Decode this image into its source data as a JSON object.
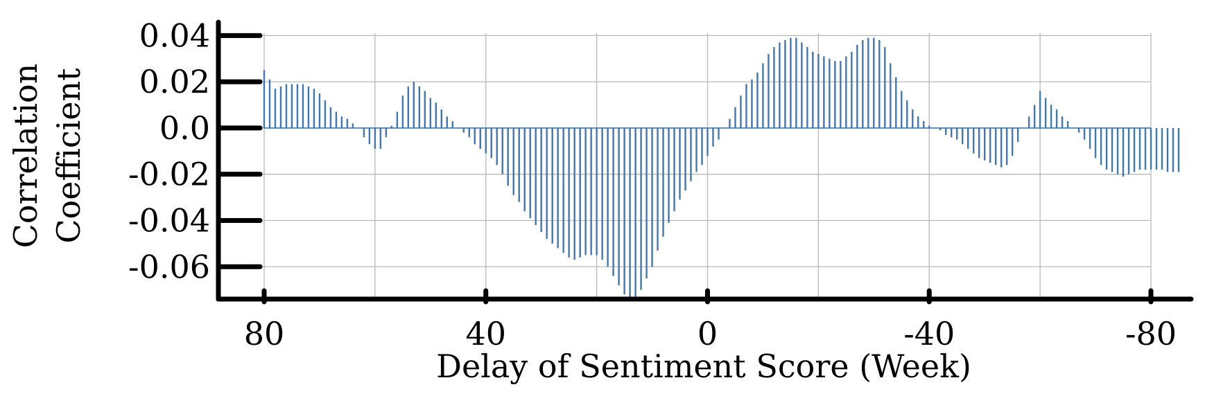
{
  "chart_data": {
    "type": "bar",
    "title": "",
    "xlabel": "Delay of Sentiment Score (Week)",
    "ylabel_lines": [
      "Correlation",
      "Coefficient"
    ],
    "x_start": 80,
    "x_end": -80,
    "x_step": -1,
    "xlim": [
      80,
      -80
    ],
    "ylim": [
      -0.074,
      0.041
    ],
    "x_ticks": [
      80,
      40,
      0,
      -40,
      -80
    ],
    "x_tick_labels": [
      "80",
      "40",
      "0",
      "-40",
      "-80"
    ],
    "x_grid": [
      80,
      60,
      40,
      20,
      0,
      -20,
      -40,
      -60,
      -80
    ],
    "y_ticks": [
      0.04,
      0.02,
      0.0,
      -0.02,
      -0.04,
      -0.06
    ],
    "y_tick_labels": [
      "0.04",
      "0.02",
      "0.0",
      "-0.02",
      "-0.04",
      "-0.06"
    ],
    "grid": true,
    "legend": "none",
    "bar_color": "#3a78b8",
    "values": [
      0.025,
      0.021,
      0.017,
      0.018,
      0.019,
      0.019,
      0.019,
      0.019,
      0.018,
      0.017,
      0.015,
      0.012,
      0.009,
      0.007,
      0.005,
      0.004,
      0.002,
      0.0,
      -0.004,
      -0.007,
      -0.009,
      -0.009,
      -0.004,
      0.001,
      0.007,
      0.014,
      0.018,
      0.02,
      0.018,
      0.016,
      0.013,
      0.011,
      0.008,
      0.005,
      0.003,
      0.0,
      -0.002,
      -0.004,
      -0.007,
      -0.009,
      -0.011,
      -0.013,
      -0.016,
      -0.02,
      -0.025,
      -0.029,
      -0.032,
      -0.036,
      -0.039,
      -0.042,
      -0.045,
      -0.048,
      -0.05,
      -0.052,
      -0.054,
      -0.056,
      -0.057,
      -0.056,
      -0.055,
      -0.055,
      -0.055,
      -0.057,
      -0.06,
      -0.064,
      -0.068,
      -0.072,
      -0.074,
      -0.074,
      -0.07,
      -0.065,
      -0.06,
      -0.053,
      -0.047,
      -0.041,
      -0.036,
      -0.031,
      -0.027,
      -0.023,
      -0.019,
      -0.016,
      -0.012,
      -0.008,
      -0.005,
      0.0,
      0.004,
      0.009,
      0.014,
      0.019,
      0.021,
      0.024,
      0.028,
      0.032,
      0.035,
      0.037,
      0.038,
      0.039,
      0.039,
      0.037,
      0.035,
      0.033,
      0.032,
      0.031,
      0.03,
      0.029,
      0.029,
      0.031,
      0.033,
      0.036,
      0.038,
      0.039,
      0.039,
      0.038,
      0.035,
      0.028,
      0.022,
      0.016,
      0.012,
      0.008,
      0.005,
      0.003,
      0.001,
      0.0,
      -0.001,
      -0.003,
      -0.004,
      -0.005,
      -0.007,
      -0.009,
      -0.011,
      -0.013,
      -0.014,
      -0.015,
      -0.016,
      -0.017,
      -0.016,
      -0.012,
      -0.006,
      0.0,
      0.005,
      0.01,
      0.016,
      0.013,
      0.01,
      0.008,
      0.005,
      0.003,
      0.0,
      -0.002,
      -0.005,
      -0.009,
      -0.013,
      -0.016,
      -0.018,
      -0.019,
      -0.02,
      -0.021,
      -0.02,
      -0.019,
      -0.018,
      -0.018,
      -0.018,
      -0.018,
      -0.018,
      -0.019,
      -0.019,
      -0.019
    ]
  }
}
